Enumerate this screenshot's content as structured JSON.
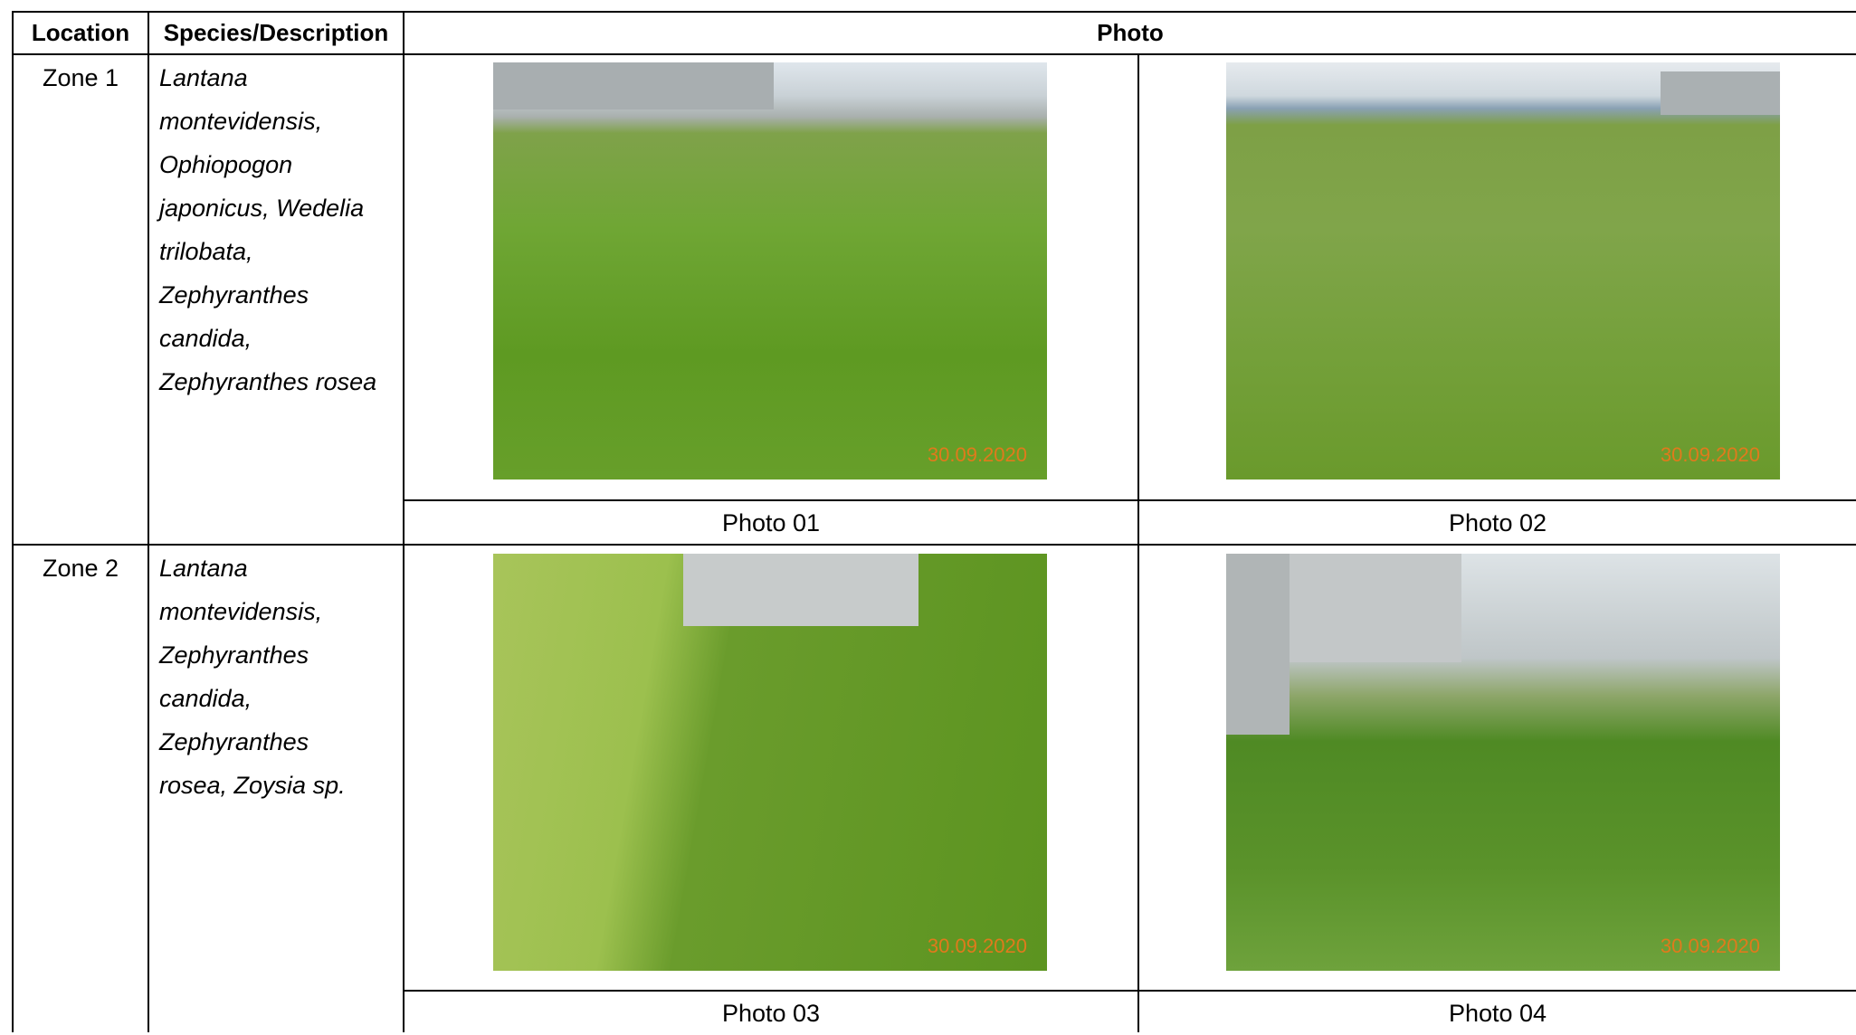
{
  "table": {
    "headers": [
      "Location",
      "Species/Description",
      "Photo"
    ],
    "rows": [
      {
        "location": "Zone 1",
        "species": [
          "Lantana",
          "montevidensis,",
          "Ophiopogon",
          "japonicus, Wedelia",
          "trilobata,",
          "Zephyranthes",
          "candida,",
          "Zephyranthes rosea"
        ],
        "photos": [
          {
            "date": "30.09.2020",
            "caption": "Photo 01"
          },
          {
            "date": "30.09.2020",
            "caption": "Photo 02"
          }
        ]
      },
      {
        "location": "Zone 2",
        "species": [
          "Lantana",
          "montevidensis,",
          "Zephyranthes",
          "candida,",
          "Zephyranthes",
          "rosea, Zoysia sp."
        ],
        "photos": [
          {
            "date": "30.09.2020",
            "caption": "Photo 03"
          },
          {
            "date": "30.09.2020",
            "caption": "Photo 04"
          }
        ]
      }
    ]
  }
}
